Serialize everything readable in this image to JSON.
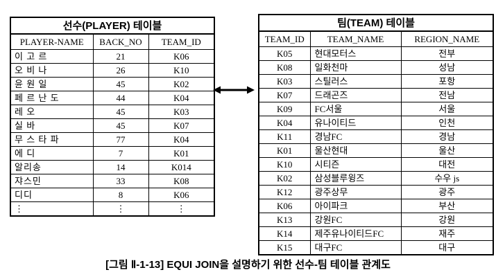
{
  "caption": "[그림 Ⅱ-1-13] EQUI JOIN을 설명하기 위한 선수-팀 테이블 관계도",
  "relationship": {
    "arrow_icon": "double-headed-arrow",
    "meaning": "join between PLAYER.TEAM_ID and TEAM.TEAM_ID"
  },
  "colors": {
    "border": "#000000",
    "text": "#000000",
    "background": "#ffffff"
  },
  "player_table": {
    "title": "선수(PLAYER) 테이블",
    "headers": [
      "PLAYER-NAME",
      "BACK_NO",
      "TEAM_ID"
    ],
    "key_column": 2,
    "rows": [
      [
        "이 고 르",
        "21",
        "K06"
      ],
      [
        "오 비 나",
        "26",
        "K10"
      ],
      [
        "윤 원 일",
        "45",
        "K02"
      ],
      [
        "페 르 난 도",
        "44",
        "K04"
      ],
      [
        "레 오",
        "45",
        "K03"
      ],
      [
        "실 바",
        "45",
        "K07"
      ],
      [
        "무 스 타 파",
        "77",
        "K04"
      ],
      [
        "에 디",
        "7",
        "K01"
      ],
      [
        "알리송",
        "14",
        "K014"
      ],
      [
        "쟈스민",
        "33",
        "K08"
      ],
      [
        "디디",
        "8",
        "K06"
      ],
      [
        "⋮",
        "⋮",
        "⋮"
      ]
    ]
  },
  "team_table": {
    "title": "팀(TEAM) 테이블",
    "headers": [
      "TEAM_ID",
      "TEAM_NAME",
      "REGION_NAME"
    ],
    "key_column": 0,
    "rows": [
      [
        "K05",
        "현대모터스",
        "전부"
      ],
      [
        "K08",
        "일화천마",
        "성남"
      ],
      [
        "K03",
        "스틸러스",
        "포항"
      ],
      [
        "K07",
        "드래곤즈",
        "전남"
      ],
      [
        "K09",
        "FC서울",
        "서울"
      ],
      [
        "K04",
        "유나이티드",
        "인천"
      ],
      [
        "K11",
        "경남FC",
        "경남"
      ],
      [
        "K01",
        "울산현대",
        "울산"
      ],
      [
        "K10",
        "시티즌",
        "대전"
      ],
      [
        "K02",
        "삼성블루윙즈",
        "수우 js"
      ],
      [
        "K12",
        "광주상무",
        "광주"
      ],
      [
        "K06",
        "아이파크",
        "부산"
      ],
      [
        "K13",
        "강원FC",
        "강원"
      ],
      [
        "K14",
        "제주유나이티드FC",
        "재주"
      ],
      [
        "K15",
        "대구FC",
        "대구"
      ]
    ]
  }
}
